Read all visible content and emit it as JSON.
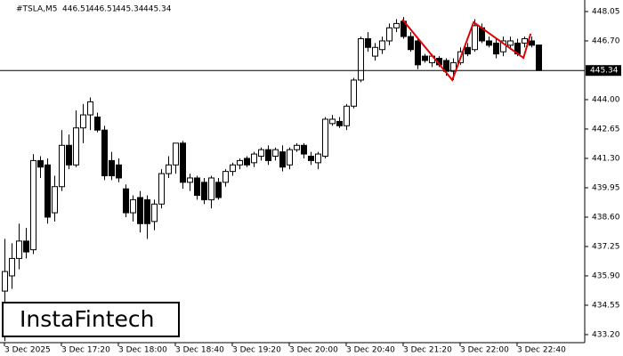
{
  "chart_data": {
    "type": "candlestick",
    "symbol": "#TSLA,M5",
    "watermark": "InstaFintech",
    "xlim": [
      -0.625,
      81.5
    ],
    "ylim": [
      432.83,
      448.58
    ],
    "xticks": [
      {
        "value": 0,
        "label": "3 Dec 2025"
      },
      {
        "value": 8,
        "label": "3 Dec 17:20"
      },
      {
        "value": 16,
        "label": "3 Dec 18:00"
      },
      {
        "value": 24,
        "label": "3 Dec 18:40"
      },
      {
        "value": 32,
        "label": "3 Dec 19:20"
      },
      {
        "value": 40,
        "label": "3 Dec 20:00"
      },
      {
        "value": 48,
        "label": "3 Dec 20:40"
      },
      {
        "value": 56,
        "label": "3 Dec 21:20"
      },
      {
        "value": 64,
        "label": "3 Dec 22:00"
      },
      {
        "value": 72,
        "label": "3 Dec 22:40"
      }
    ],
    "yticks": [
      {
        "value": 448.05,
        "label": "448.05"
      },
      {
        "value": 446.7,
        "label": "446.70"
      },
      {
        "value": 444.0,
        "label": "444.00"
      },
      {
        "value": 442.65,
        "label": "442.65"
      },
      {
        "value": 441.3,
        "label": "441.30"
      },
      {
        "value": 439.95,
        "label": "439.95"
      },
      {
        "value": 438.6,
        "label": "438.60"
      },
      {
        "value": 437.25,
        "label": "437.25"
      },
      {
        "value": 435.9,
        "label": "435.90"
      },
      {
        "value": 434.55,
        "label": "434.55"
      },
      {
        "value": 433.2,
        "label": "433.20"
      }
    ],
    "up_color": "#ffffff",
    "down_color": "#000000",
    "ohlc": [
      [
        435.2,
        437.6,
        432.9,
        436.1
      ],
      [
        435.9,
        437.4,
        435.3,
        436.7
      ],
      [
        436.7,
        438.3,
        436.2,
        437.5
      ],
      [
        437.5,
        438.1,
        436.7,
        437.0
      ],
      [
        437.1,
        441.5,
        436.9,
        441.2
      ],
      [
        441.2,
        441.4,
        440.4,
        440.9
      ],
      [
        441.0,
        441.3,
        438.3,
        438.6
      ],
      [
        438.8,
        440.5,
        438.4,
        440.0
      ],
      [
        440.0,
        442.6,
        439.8,
        441.9
      ],
      [
        441.9,
        442.4,
        440.8,
        441.0
      ],
      [
        441.0,
        443.5,
        440.9,
        442.7
      ],
      [
        442.7,
        443.8,
        442.0,
        443.3
      ],
      [
        443.3,
        444.1,
        442.6,
        443.9
      ],
      [
        443.2,
        443.4,
        442.5,
        442.6
      ],
      [
        442.6,
        442.8,
        440.3,
        440.5
      ],
      [
        441.2,
        441.6,
        440.3,
        440.5
      ],
      [
        441.0,
        441.3,
        440.2,
        440.4
      ],
      [
        439.9,
        440.1,
        438.6,
        438.8
      ],
      [
        438.8,
        439.6,
        438.4,
        439.4
      ],
      [
        439.5,
        439.8,
        437.9,
        438.3
      ],
      [
        439.4,
        439.6,
        437.6,
        438.3
      ],
      [
        438.4,
        439.4,
        438.0,
        439.2
      ],
      [
        439.2,
        440.8,
        439.0,
        440.6
      ],
      [
        440.6,
        441.4,
        440.4,
        441.0
      ],
      [
        441.0,
        442.0,
        440.6,
        442.0
      ],
      [
        442.0,
        442.1,
        439.9,
        440.2
      ],
      [
        440.2,
        440.6,
        439.8,
        440.4
      ],
      [
        440.4,
        440.5,
        439.4,
        439.6
      ],
      [
        440.2,
        440.4,
        439.2,
        439.4
      ],
      [
        439.4,
        440.5,
        439.0,
        440.4
      ],
      [
        440.2,
        440.4,
        439.4,
        439.5
      ],
      [
        440.2,
        440.8,
        440.0,
        440.7
      ],
      [
        440.7,
        441.1,
        440.5,
        441.0
      ],
      [
        441.0,
        441.3,
        440.8,
        441.2
      ],
      [
        441.3,
        441.4,
        440.9,
        441.0
      ],
      [
        441.1,
        441.6,
        440.9,
        441.5
      ],
      [
        441.4,
        441.8,
        441.2,
        441.7
      ],
      [
        441.7,
        441.9,
        441.0,
        441.2
      ],
      [
        441.4,
        441.8,
        441.2,
        441.7
      ],
      [
        441.6,
        441.9,
        440.7,
        440.9
      ],
      [
        441.0,
        441.8,
        440.8,
        441.7
      ],
      [
        441.7,
        442.0,
        441.6,
        441.9
      ],
      [
        441.9,
        442.0,
        441.3,
        441.5
      ],
      [
        441.4,
        441.6,
        441.0,
        441.2
      ],
      [
        441.1,
        441.6,
        440.8,
        441.5
      ],
      [
        441.4,
        443.2,
        441.3,
        443.1
      ],
      [
        442.9,
        443.3,
        442.8,
        443.1
      ],
      [
        443.0,
        443.2,
        442.7,
        442.8
      ],
      [
        442.8,
        443.8,
        442.6,
        443.7
      ],
      [
        443.7,
        445.0,
        443.6,
        444.9
      ],
      [
        444.9,
        446.9,
        444.8,
        446.8
      ],
      [
        446.8,
        447.1,
        446.2,
        446.4
      ],
      [
        446.0,
        446.6,
        445.8,
        446.4
      ],
      [
        446.3,
        446.9,
        446.1,
        446.7
      ],
      [
        446.7,
        447.5,
        446.5,
        447.3
      ],
      [
        447.3,
        447.7,
        447.1,
        447.5
      ],
      [
        447.6,
        447.8,
        446.8,
        446.9
      ],
      [
        446.9,
        447.1,
        446.2,
        446.3
      ],
      [
        446.7,
        446.8,
        445.4,
        445.6
      ],
      [
        446.0,
        446.1,
        445.7,
        445.8
      ],
      [
        445.7,
        446.1,
        445.5,
        446.0
      ],
      [
        445.9,
        446.0,
        445.5,
        445.6
      ],
      [
        445.8,
        445.9,
        445.1,
        445.3
      ],
      [
        445.3,
        445.9,
        444.9,
        445.7
      ],
      [
        445.7,
        446.4,
        445.6,
        446.2
      ],
      [
        446.4,
        446.6,
        446.0,
        446.1
      ],
      [
        446.3,
        447.7,
        446.2,
        447.4
      ],
      [
        447.3,
        447.5,
        446.6,
        446.7
      ],
      [
        446.7,
        446.9,
        446.4,
        446.5
      ],
      [
        446.6,
        446.8,
        445.9,
        446.1
      ],
      [
        446.2,
        446.9,
        446.0,
        446.7
      ],
      [
        446.5,
        446.9,
        446.3,
        446.7
      ],
      [
        446.6,
        446.8,
        446.0,
        446.1
      ],
      [
        446.6,
        446.9,
        446.4,
        446.8
      ],
      [
        446.7,
        446.9,
        446.4,
        446.5
      ],
      [
        446.51,
        446.51,
        445.34,
        445.34
      ]
    ],
    "pattern": {
      "color": "#e00000",
      "x": [
        55.9,
        62.9,
        65.9,
        72.9,
        73.9
      ],
      "y": [
        447.68,
        444.9,
        447.56,
        445.92,
        447.03
      ]
    }
  }
}
